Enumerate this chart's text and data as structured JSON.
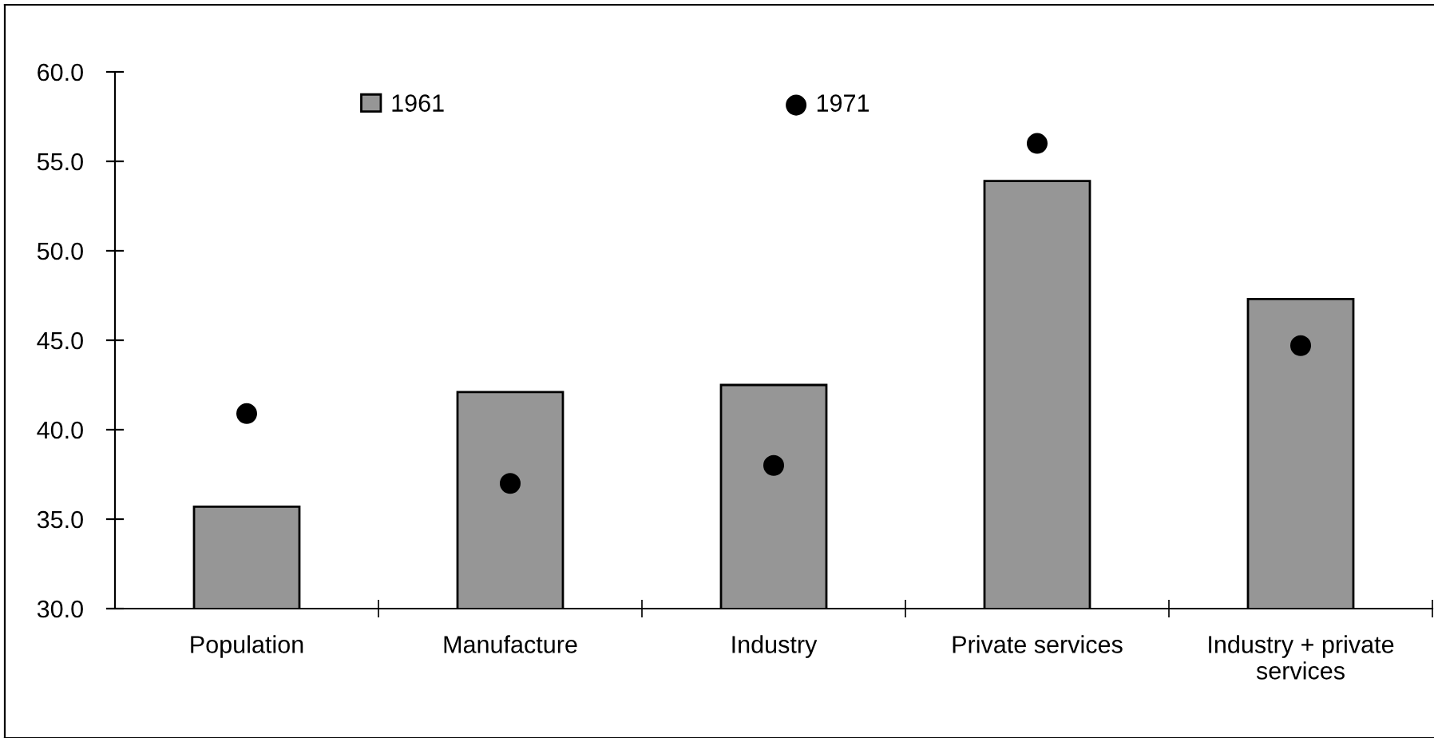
{
  "chart_data": {
    "type": "bar",
    "categories": [
      "Population",
      "Manufacture",
      "Industry",
      "Private services",
      "Industry + private\nservices"
    ],
    "series": [
      {
        "name": "1961",
        "color": "#969696",
        "values": [
          35.7,
          42.1,
          42.5,
          53.9,
          47.3
        ]
      },
      {
        "name": "1971",
        "type": "scatter",
        "color": "#000000",
        "marker": "circle",
        "values": [
          40.9,
          37.0,
          38.0,
          56.0,
          44.7
        ]
      }
    ],
    "ylim": [
      30,
      60
    ],
    "yticks": [
      {
        "value": 30,
        "label": "30.0"
      },
      {
        "value": 35,
        "label": "35.0"
      },
      {
        "value": 40,
        "label": "40.0"
      },
      {
        "value": 45,
        "label": "45.0"
      },
      {
        "value": 50,
        "label": "50.0"
      },
      {
        "value": 55,
        "label": "55.0"
      },
      {
        "value": 60,
        "label": "60.0"
      }
    ],
    "grid": false,
    "legend": "top"
  }
}
